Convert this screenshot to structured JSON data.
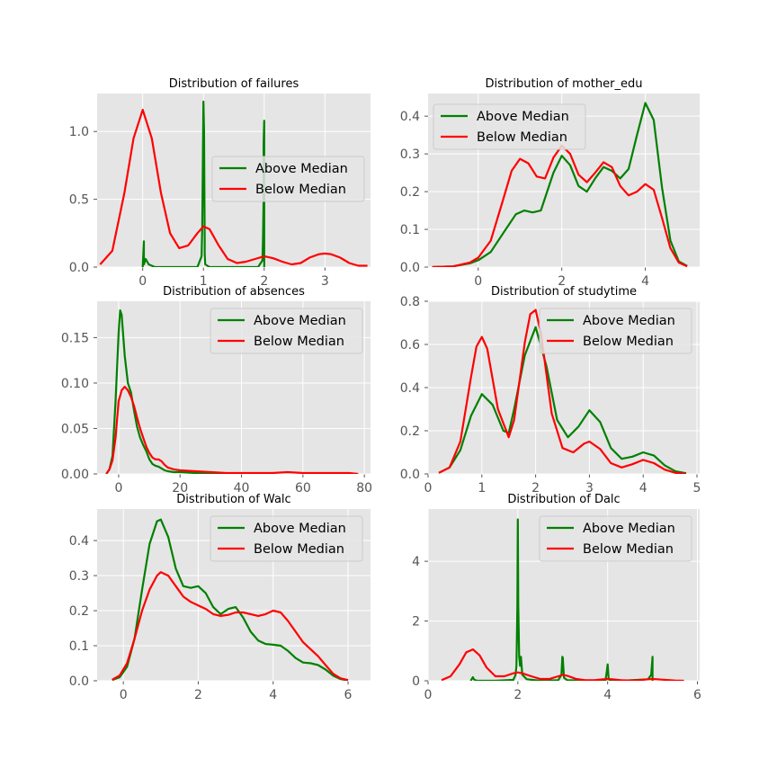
{
  "chart_data": [
    {
      "type": "line",
      "title": "Distribution of failures",
      "xlim": [
        -0.75,
        3.75
      ],
      "ylim": [
        0,
        1.28
      ],
      "xticks": [
        0,
        1,
        2,
        3
      ],
      "yticks": [
        0.0,
        0.5,
        1.0
      ],
      "xtick_labels": [
        "0",
        "1",
        "2",
        "3"
      ],
      "ytick_labels": [
        "0.0",
        "0.5",
        "1.0"
      ],
      "legend_position": "center-right",
      "series": [
        {
          "name": "Above Median",
          "color": "#008000",
          "x": [
            0.0,
            0.0,
            0.02,
            0.02,
            0.05,
            0.1,
            0.2,
            0.9,
            0.97,
            0.98,
            1.0,
            1.01,
            1.02,
            1.02,
            1.03,
            1.1,
            1.5,
            1.9,
            1.97,
            1.98,
            1.99,
            1.99,
            2.0,
            2.0,
            2.0
          ],
          "y": [
            0.0,
            0.0,
            0.19,
            0.02,
            0.06,
            0.02,
            0.0,
            0.0,
            0.08,
            0.3,
            1.22,
            1.0,
            0.2,
            0.1,
            0.02,
            0.0,
            0.0,
            0.0,
            0.05,
            0.19,
            0.5,
            0.9,
            1.08,
            0.5,
            0.0
          ]
        },
        {
          "name": "Below Median",
          "color": "#ff0000",
          "x": [
            -0.7,
            -0.5,
            -0.3,
            -0.15,
            0.0,
            0.15,
            0.3,
            0.45,
            0.6,
            0.75,
            0.9,
            1.0,
            1.1,
            1.25,
            1.4,
            1.55,
            1.7,
            1.85,
            2.0,
            2.15,
            2.3,
            2.45,
            2.6,
            2.75,
            2.9,
            3.0,
            3.1,
            3.25,
            3.4,
            3.55,
            3.7
          ],
          "y": [
            0.02,
            0.12,
            0.55,
            0.95,
            1.16,
            0.95,
            0.55,
            0.25,
            0.14,
            0.16,
            0.25,
            0.3,
            0.28,
            0.16,
            0.06,
            0.03,
            0.04,
            0.06,
            0.08,
            0.065,
            0.04,
            0.02,
            0.03,
            0.07,
            0.095,
            0.1,
            0.095,
            0.07,
            0.03,
            0.01,
            0.01
          ]
        }
      ]
    },
    {
      "type": "line",
      "title": "Distribution of mother_edu",
      "xlim": [
        -1.2,
        5.3
      ],
      "ylim": [
        0,
        0.46
      ],
      "xticks": [
        0,
        2,
        4
      ],
      "yticks": [
        0.0,
        0.1,
        0.2,
        0.3,
        0.4
      ],
      "xtick_labels": [
        "0",
        "2",
        "4"
      ],
      "ytick_labels": [
        "0.0",
        "0.1",
        "0.2",
        "0.3",
        "0.4"
      ],
      "legend_position": "top-left",
      "series": [
        {
          "name": "Above Median",
          "color": "#008000",
          "x": [
            -1.1,
            -0.6,
            -0.2,
            0.0,
            0.3,
            0.6,
            0.9,
            1.1,
            1.3,
            1.5,
            1.8,
            2.0,
            2.2,
            2.4,
            2.6,
            2.8,
            3.0,
            3.2,
            3.4,
            3.6,
            3.8,
            4.0,
            4.2,
            4.4,
            4.6,
            4.8,
            5.0
          ],
          "y": [
            0.0,
            0.002,
            0.01,
            0.018,
            0.04,
            0.09,
            0.14,
            0.15,
            0.145,
            0.15,
            0.25,
            0.295,
            0.27,
            0.215,
            0.2,
            0.235,
            0.265,
            0.255,
            0.235,
            0.26,
            0.35,
            0.435,
            0.39,
            0.21,
            0.07,
            0.015,
            0.003
          ]
        },
        {
          "name": "Below Median",
          "color": "#ff0000",
          "x": [
            -1.1,
            -0.6,
            -0.2,
            0.0,
            0.3,
            0.6,
            0.8,
            1.0,
            1.2,
            1.4,
            1.6,
            1.8,
            2.0,
            2.2,
            2.4,
            2.6,
            2.8,
            3.0,
            3.2,
            3.4,
            3.6,
            3.8,
            4.0,
            4.2,
            4.4,
            4.6,
            4.8,
            5.0
          ],
          "y": [
            0.0,
            0.002,
            0.012,
            0.025,
            0.07,
            0.18,
            0.255,
            0.287,
            0.275,
            0.24,
            0.235,
            0.29,
            0.322,
            0.3,
            0.245,
            0.225,
            0.25,
            0.278,
            0.265,
            0.215,
            0.19,
            0.2,
            0.22,
            0.205,
            0.13,
            0.05,
            0.012,
            0.002
          ]
        }
      ]
    },
    {
      "type": "line",
      "title": "Distribution of absences",
      "xlim": [
        -7,
        82
      ],
      "ylim": [
        0,
        0.19
      ],
      "xticks": [
        0,
        20,
        40,
        60,
        80
      ],
      "yticks": [
        0.0,
        0.05,
        0.1,
        0.15
      ],
      "xtick_labels": [
        "0",
        "20",
        "40",
        "60",
        "80"
      ],
      "ytick_labels": [
        "0.00",
        "0.05",
        "0.10",
        "0.15"
      ],
      "legend_position": "top-right",
      "series": [
        {
          "name": "Above Median",
          "color": "#008000",
          "x": [
            -4,
            -3,
            -2,
            -1,
            0,
            0.5,
            1,
            2,
            3,
            4,
            5,
            6,
            7,
            8,
            9,
            10,
            11,
            12,
            13,
            14,
            15,
            16,
            18,
            20,
            25,
            30,
            35
          ],
          "y": [
            0.0,
            0.005,
            0.02,
            0.08,
            0.155,
            0.18,
            0.175,
            0.13,
            0.1,
            0.09,
            0.07,
            0.052,
            0.04,
            0.032,
            0.025,
            0.016,
            0.011,
            0.009,
            0.008,
            0.006,
            0.004,
            0.003,
            0.002,
            0.002,
            0.001,
            0.0,
            0.0
          ]
        },
        {
          "name": "Below Median",
          "color": "#ff0000",
          "x": [
            -4,
            -3,
            -2,
            -1,
            0,
            1,
            2,
            3,
            4,
            5,
            6,
            7,
            8,
            9,
            10,
            11,
            12,
            13,
            14,
            15,
            16,
            18,
            20,
            25,
            30,
            35,
            40,
            45,
            50,
            55,
            60,
            65,
            70,
            75,
            78
          ],
          "y": [
            0.0,
            0.005,
            0.015,
            0.04,
            0.08,
            0.092,
            0.096,
            0.092,
            0.085,
            0.075,
            0.062,
            0.05,
            0.04,
            0.03,
            0.023,
            0.018,
            0.016,
            0.016,
            0.014,
            0.01,
            0.007,
            0.005,
            0.004,
            0.003,
            0.002,
            0.001,
            0.001,
            0.001,
            0.001,
            0.002,
            0.001,
            0.001,
            0.001,
            0.001,
            0.0
          ]
        }
      ]
    },
    {
      "type": "line",
      "title": "Distribution of studytime",
      "xlim": [
        0,
        5.05
      ],
      "ylim": [
        0,
        0.8
      ],
      "xticks": [
        0,
        1,
        2,
        3,
        4,
        5
      ],
      "yticks": [
        0.0,
        0.2,
        0.4,
        0.6,
        0.8
      ],
      "xtick_labels": [
        "0",
        "1",
        "2",
        "3",
        "4",
        "5"
      ],
      "ytick_labels": [
        "0.0",
        "0.2",
        "0.4",
        "0.6",
        "0.8"
      ],
      "legend_position": "top-right",
      "series": [
        {
          "name": "Above Median",
          "color": "#008000",
          "x": [
            0.2,
            0.4,
            0.6,
            0.8,
            1.0,
            1.2,
            1.4,
            1.5,
            1.6,
            1.8,
            2.0,
            2.2,
            2.4,
            2.6,
            2.8,
            3.0,
            3.2,
            3.4,
            3.6,
            3.8,
            4.0,
            4.2,
            4.4,
            4.6,
            4.8
          ],
          "y": [
            0.005,
            0.03,
            0.11,
            0.27,
            0.37,
            0.32,
            0.2,
            0.19,
            0.3,
            0.55,
            0.68,
            0.5,
            0.25,
            0.17,
            0.22,
            0.295,
            0.24,
            0.12,
            0.07,
            0.08,
            0.1,
            0.085,
            0.04,
            0.012,
            0.003
          ]
        },
        {
          "name": "Below Median",
          "color": "#ff0000",
          "x": [
            0.2,
            0.4,
            0.6,
            0.8,
            0.9,
            1.0,
            1.1,
            1.3,
            1.5,
            1.6,
            1.8,
            1.9,
            2.0,
            2.1,
            2.3,
            2.5,
            2.7,
            2.9,
            3.0,
            3.2,
            3.4,
            3.6,
            3.8,
            4.0,
            4.2,
            4.4,
            4.6,
            4.8
          ],
          "y": [
            0.005,
            0.03,
            0.15,
            0.45,
            0.59,
            0.635,
            0.58,
            0.3,
            0.17,
            0.25,
            0.61,
            0.74,
            0.76,
            0.65,
            0.28,
            0.12,
            0.1,
            0.14,
            0.15,
            0.115,
            0.05,
            0.03,
            0.045,
            0.065,
            0.05,
            0.02,
            0.005,
            0.001
          ]
        }
      ]
    },
    {
      "type": "line",
      "title": "Distribution of Walc",
      "xlim": [
        -0.7,
        6.6
      ],
      "ylim": [
        0,
        0.49
      ],
      "xticks": [
        0,
        2,
        4,
        6
      ],
      "yticks": [
        0.0,
        0.1,
        0.2,
        0.3,
        0.4
      ],
      "xtick_labels": [
        "0",
        "2",
        "4",
        "6"
      ],
      "ytick_labels": [
        "0.0",
        "0.1",
        "0.2",
        "0.3",
        "0.4"
      ],
      "legend_position": "top-right",
      "series": [
        {
          "name": "Above Median",
          "color": "#008000",
          "x": [
            -0.3,
            -0.1,
            0.1,
            0.3,
            0.5,
            0.7,
            0.9,
            1.0,
            1.2,
            1.4,
            1.6,
            1.8,
            2.0,
            2.2,
            2.4,
            2.6,
            2.8,
            3.0,
            3.2,
            3.4,
            3.6,
            3.8,
            4.0,
            4.2,
            4.4,
            4.6,
            4.8,
            5.0,
            5.2,
            5.4,
            5.6,
            5.8,
            6.0
          ],
          "y": [
            0.002,
            0.01,
            0.04,
            0.12,
            0.26,
            0.39,
            0.455,
            0.46,
            0.41,
            0.32,
            0.27,
            0.265,
            0.27,
            0.25,
            0.21,
            0.19,
            0.205,
            0.21,
            0.18,
            0.14,
            0.115,
            0.105,
            0.103,
            0.1,
            0.085,
            0.065,
            0.052,
            0.05,
            0.045,
            0.032,
            0.015,
            0.005,
            0.001
          ]
        },
        {
          "name": "Below Median",
          "color": "#ff0000",
          "x": [
            -0.3,
            -0.1,
            0.1,
            0.3,
            0.5,
            0.7,
            0.9,
            1.0,
            1.2,
            1.4,
            1.6,
            1.8,
            2.0,
            2.2,
            2.4,
            2.6,
            2.8,
            3.0,
            3.2,
            3.4,
            3.6,
            3.8,
            4.0,
            4.2,
            4.4,
            4.6,
            4.8,
            5.0,
            5.2,
            5.4,
            5.6,
            5.8,
            6.0
          ],
          "y": [
            0.003,
            0.015,
            0.05,
            0.12,
            0.2,
            0.26,
            0.3,
            0.31,
            0.3,
            0.27,
            0.24,
            0.225,
            0.215,
            0.205,
            0.19,
            0.185,
            0.188,
            0.195,
            0.195,
            0.19,
            0.185,
            0.19,
            0.2,
            0.195,
            0.17,
            0.14,
            0.11,
            0.09,
            0.07,
            0.045,
            0.02,
            0.007,
            0.002
          ]
        }
      ]
    },
    {
      "type": "line",
      "title": "Distribution of Dalc",
      "xlim": [
        0,
        6.05
      ],
      "ylim": [
        0,
        5.75
      ],
      "xticks": [
        0,
        2,
        4,
        6
      ],
      "yticks": [
        0,
        2,
        4
      ],
      "xtick_labels": [
        "0",
        "2",
        "4",
        "6"
      ],
      "ytick_labels": [
        "0",
        "2",
        "4"
      ],
      "legend_position": "top-right",
      "series": [
        {
          "name": "Above Median",
          "color": "#008000",
          "x": [
            0.95,
            1.0,
            1.02,
            1.05,
            1.1,
            1.5,
            1.9,
            1.95,
            1.97,
            1.99,
            2.0,
            2.01,
            2.03,
            2.05,
            2.07,
            2.1,
            2.2,
            2.5,
            2.9,
            2.97,
            2.99,
            3.0,
            3.01,
            3.03,
            3.1,
            3.5,
            3.95,
            3.98,
            4.0,
            4.02,
            4.05,
            4.3,
            4.9,
            4.97,
            5.0,
            5.0
          ],
          "y": [
            0.0,
            0.12,
            0.05,
            0.02,
            0.0,
            0.0,
            0.03,
            0.2,
            0.5,
            2.5,
            5.4,
            2.5,
            0.8,
            0.5,
            0.8,
            0.2,
            0.05,
            0.0,
            0.02,
            0.2,
            0.8,
            0.78,
            0.5,
            0.1,
            0.02,
            0.0,
            0.0,
            0.3,
            0.55,
            0.1,
            0.0,
            0.0,
            0.05,
            0.2,
            0.8,
            0.0
          ]
        },
        {
          "name": "Below Median",
          "color": "#ff0000",
          "x": [
            0.3,
            0.5,
            0.7,
            0.85,
            1.0,
            1.15,
            1.3,
            1.5,
            1.7,
            1.9,
            2.0,
            2.1,
            2.3,
            2.5,
            2.7,
            2.9,
            3.0,
            3.1,
            3.3,
            3.5,
            3.7,
            3.9,
            4.0,
            4.1,
            4.3,
            4.5,
            4.7,
            4.9,
            5.0,
            5.2,
            5.5,
            5.7
          ],
          "y": [
            0.02,
            0.15,
            0.55,
            0.95,
            1.05,
            0.85,
            0.45,
            0.15,
            0.15,
            0.25,
            0.28,
            0.25,
            0.15,
            0.06,
            0.06,
            0.15,
            0.2,
            0.17,
            0.06,
            0.02,
            0.02,
            0.05,
            0.06,
            0.05,
            0.02,
            0.01,
            0.02,
            0.05,
            0.06,
            0.04,
            0.01,
            0.0
          ]
        }
      ]
    }
  ]
}
